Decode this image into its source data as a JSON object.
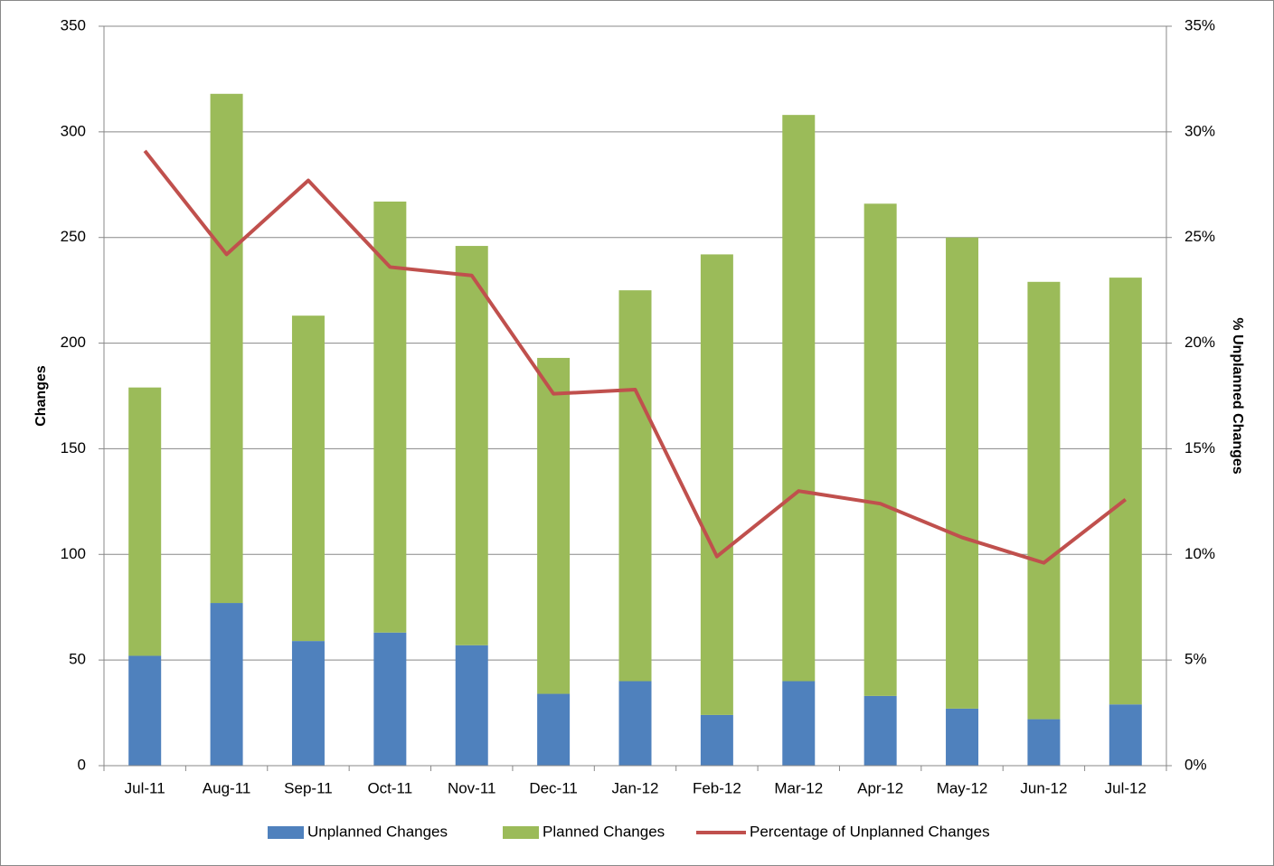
{
  "chart_data": {
    "type": "bar",
    "stacked": true,
    "categories": [
      "Jul-11",
      "Aug-11",
      "Sep-11",
      "Oct-11",
      "Nov-11",
      "Dec-11",
      "Jan-12",
      "Feb-12",
      "Mar-12",
      "Apr-12",
      "May-12",
      "Jun-12",
      "Jul-12"
    ],
    "series": [
      {
        "name": "Unplanned Changes",
        "type": "bar",
        "color": "#4f81bd",
        "values": [
          52,
          77,
          59,
          63,
          57,
          34,
          40,
          24,
          40,
          33,
          27,
          22,
          29
        ]
      },
      {
        "name": "Planned Changes",
        "type": "bar",
        "color": "#9bbb59",
        "values": [
          127,
          241,
          154,
          204,
          189,
          159,
          185,
          218,
          268,
          233,
          223,
          207,
          202
        ]
      },
      {
        "name": "Percentage of Unplanned Changes",
        "type": "line",
        "axis": "y2",
        "color": "#c0504d",
        "values": [
          29.1,
          24.2,
          27.7,
          23.6,
          23.2,
          17.6,
          17.8,
          9.9,
          13.0,
          12.4,
          10.8,
          9.6,
          12.6
        ]
      }
    ],
    "ylabel": "Changes",
    "y2label": "% Unplanned Changes",
    "ylim": [
      0,
      350
    ],
    "yticks": [
      0,
      50,
      100,
      150,
      200,
      250,
      300,
      350
    ],
    "y2lim": [
      0,
      35
    ],
    "y2ticks": [
      {
        "value": 0,
        "label": "0%"
      },
      {
        "value": 5,
        "label": "5%"
      },
      {
        "value": 10,
        "label": "10%"
      },
      {
        "value": 15,
        "label": "15%"
      },
      {
        "value": 20,
        "label": "20%"
      },
      {
        "value": 25,
        "label": "25%"
      },
      {
        "value": 30,
        "label": "30%"
      },
      {
        "value": 35,
        "label": "35%"
      }
    ],
    "grid": true,
    "legend": "bottom"
  }
}
